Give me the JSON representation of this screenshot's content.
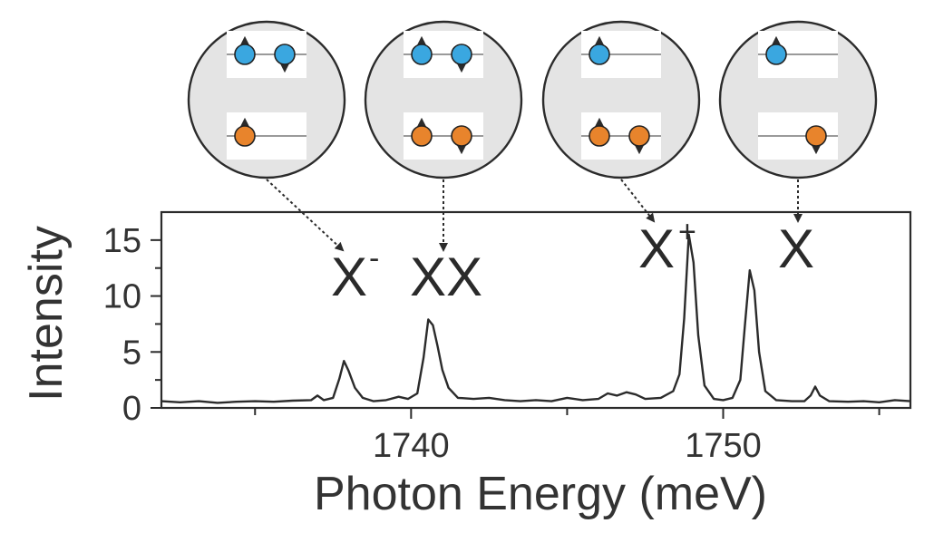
{
  "chart_data": {
    "type": "line",
    "xlabel": "Photon Energy (meV)",
    "ylabel": "Intensity",
    "xlim": [
      1732,
      1756
    ],
    "ylim": [
      0,
      17.5
    ],
    "x_ticks_major": [
      1740,
      1750
    ],
    "x_ticks_minor": [
      1735,
      1745,
      1755
    ],
    "y_ticks": [
      0,
      5,
      10,
      15
    ],
    "grid": false,
    "series": [
      {
        "line_color": "#2b2b2b",
        "points": [
          [
            1732.0,
            0.6
          ],
          [
            1732.6,
            0.5
          ],
          [
            1733.2,
            0.6
          ],
          [
            1733.8,
            0.45
          ],
          [
            1734.4,
            0.55
          ],
          [
            1735.0,
            0.6
          ],
          [
            1735.6,
            0.55
          ],
          [
            1736.2,
            0.65
          ],
          [
            1736.8,
            0.7
          ],
          [
            1737.0,
            1.1
          ],
          [
            1737.2,
            0.7
          ],
          [
            1737.5,
            0.9
          ],
          [
            1737.7,
            2.6
          ],
          [
            1737.85,
            4.2
          ],
          [
            1738.0,
            3.3
          ],
          [
            1738.2,
            1.8
          ],
          [
            1738.45,
            0.9
          ],
          [
            1738.8,
            0.6
          ],
          [
            1739.2,
            0.7
          ],
          [
            1739.6,
            1.0
          ],
          [
            1739.9,
            0.8
          ],
          [
            1740.2,
            1.3
          ],
          [
            1740.4,
            4.5
          ],
          [
            1740.55,
            7.9
          ],
          [
            1740.7,
            7.4
          ],
          [
            1740.85,
            5.5
          ],
          [
            1741.0,
            3.4
          ],
          [
            1741.2,
            1.8
          ],
          [
            1741.5,
            0.9
          ],
          [
            1742.0,
            0.8
          ],
          [
            1742.5,
            0.9
          ],
          [
            1743.0,
            0.7
          ],
          [
            1743.5,
            0.6
          ],
          [
            1744.0,
            0.7
          ],
          [
            1744.5,
            0.6
          ],
          [
            1745.0,
            0.9
          ],
          [
            1745.5,
            0.7
          ],
          [
            1746.0,
            0.8
          ],
          [
            1746.3,
            1.3
          ],
          [
            1746.6,
            1.1
          ],
          [
            1746.9,
            1.4
          ],
          [
            1747.2,
            1.2
          ],
          [
            1747.5,
            0.8
          ],
          [
            1748.0,
            0.9
          ],
          [
            1748.4,
            1.5
          ],
          [
            1748.6,
            3.0
          ],
          [
            1748.75,
            8.0
          ],
          [
            1748.9,
            15.5
          ],
          [
            1749.05,
            13.0
          ],
          [
            1749.2,
            6.5
          ],
          [
            1749.4,
            2.0
          ],
          [
            1749.7,
            0.8
          ],
          [
            1750.0,
            0.7
          ],
          [
            1750.3,
            0.9
          ],
          [
            1750.55,
            2.5
          ],
          [
            1750.7,
            7.5
          ],
          [
            1750.85,
            12.3
          ],
          [
            1751.0,
            10.5
          ],
          [
            1751.15,
            5.0
          ],
          [
            1751.35,
            1.5
          ],
          [
            1751.7,
            0.7
          ],
          [
            1752.2,
            0.6
          ],
          [
            1752.6,
            0.6
          ],
          [
            1752.8,
            1.1
          ],
          [
            1752.95,
            1.9
          ],
          [
            1753.1,
            1.1
          ],
          [
            1753.4,
            0.6
          ],
          [
            1754.0,
            0.55
          ],
          [
            1754.5,
            0.6
          ],
          [
            1755.0,
            0.5
          ],
          [
            1755.5,
            0.7
          ],
          [
            1756.0,
            0.6
          ]
        ]
      }
    ],
    "annotations": [
      {
        "main": "X",
        "superscript": "-",
        "x": 1737.8
      },
      {
        "main": "XX",
        "superscript": "",
        "x": 1740.5
      },
      {
        "main": "X",
        "superscript": "+",
        "x": 1747.9
      },
      {
        "main": "X",
        "superscript": "",
        "x": 1752.0
      }
    ]
  },
  "insets": [
    {
      "target": "X-",
      "top": [
        "up",
        "down"
      ],
      "bottom": [
        "up"
      ]
    },
    {
      "target": "XX",
      "top": [
        "up",
        "down"
      ],
      "bottom": [
        "up",
        "down"
      ]
    },
    {
      "target": "X+",
      "top": [
        "up"
      ],
      "bottom": [
        "up",
        "down"
      ]
    },
    {
      "target": "X",
      "top": [
        "up"
      ],
      "bottom": [
        "down-right"
      ]
    }
  ],
  "colors": {
    "blue_particle": "#3aa7e0",
    "orange_particle": "#e8842c",
    "circle_fill": "#e4e4e4",
    "panel_fill": "#ffffff",
    "line": "#2b2b2b"
  }
}
